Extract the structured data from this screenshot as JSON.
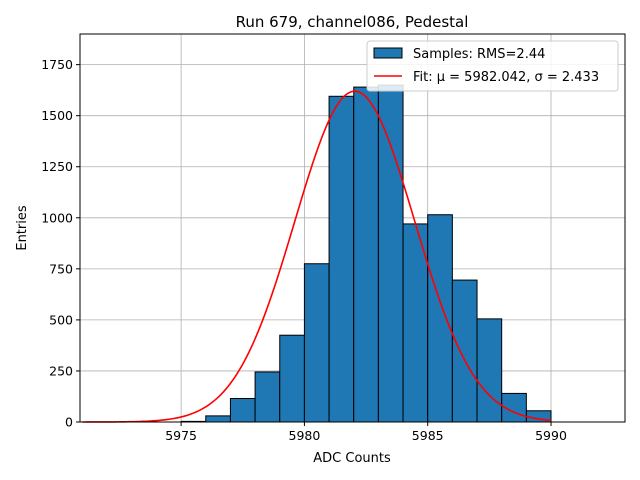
{
  "chart_data": {
    "type": "bar",
    "title": "Run 679, channel086, Pedestal",
    "xlabel": "ADC Counts",
    "ylabel": "Entries",
    "xlim": [
      5970.9,
      5993.0
    ],
    "ylim": [
      0,
      1900
    ],
    "xticks": [
      5975,
      5980,
      5985,
      5990
    ],
    "yticks": [
      0,
      250,
      500,
      750,
      1000,
      1250,
      1500,
      1750
    ],
    "grid": true,
    "legend_position": "top-right",
    "histogram": {
      "name": "Samples: RMS=2.44",
      "color": "#1f77b4",
      "bin_edges": [
        5975,
        5976,
        5977,
        5978,
        5979,
        5980,
        5981,
        5982,
        5983,
        5984,
        5985,
        5986,
        5987,
        5988,
        5989,
        5990
      ],
      "counts": [
        3,
        30,
        115,
        245,
        425,
        775,
        1595,
        1640,
        1650,
        970,
        1015,
        695,
        505,
        140,
        55,
        5
      ]
    },
    "fit": {
      "name": "Fit: μ = 5982.042, σ = 2.433",
      "color": "#ff0000",
      "mu": 5982.042,
      "sigma": 2.433,
      "amplitude": 1620,
      "x_range": [
        5971.0,
        5990.0
      ]
    }
  }
}
